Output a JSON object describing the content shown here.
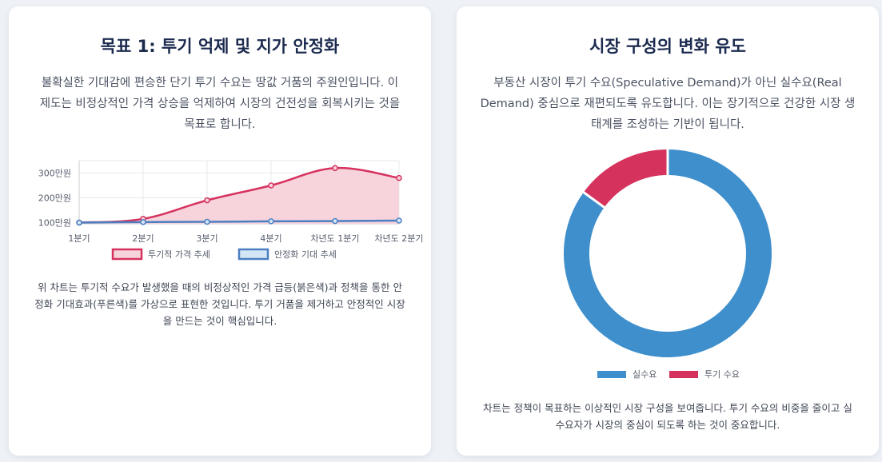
{
  "left_card": {
    "title": "목표 1: 투기 억제 및 지가 안정화",
    "description": "불확실한 기대감에 편승한 단기 투기 수요는 땅값 거품의 주원인입니다. 이 제도는 비정상적인 가격 상승을 억제하여 시장의 건전성을 회복시키는 것을 목표로 합니다.",
    "note": "위 차트는 투기적 수요가 발생했을 때의 비정상적인 가격 급등(붉은색)과 정책을 통한 안정화 기대효과(푸른색)를 가상으로 표현한 것입니다. 투기 거품을 제거하고 안정적인 시장을 만드는 것이 핵심입니다."
  },
  "right_card": {
    "title": "시장 구성의 변화 유도",
    "description": "부동산 시장이 투기 수요(Speculative Demand)가 아닌 실수요(Real Demand) 중심으로 재편되도록 유도합니다. 이는 장기적으로 건강한 시장 생태계를 조성하는 기반이 됩니다.",
    "note": "차트는 정책이 목표하는 이상적인 시장 구성을 보여줍니다. 투기 수요의 비중을 줄이고 실수요자가 시장의 중심이 되도록 하는 것이 중요합니다."
  },
  "chart_data": [
    {
      "type": "line",
      "categories": [
        "1분기",
        "2분기",
        "3분기",
        "4분기",
        "차년도 1분기",
        "차년도 2분기"
      ],
      "y_tick_labels": [
        "100만원",
        "200만원",
        "300만원"
      ],
      "y_ticks": [
        100,
        200,
        300
      ],
      "ylim": [
        95,
        350
      ],
      "grid": true,
      "legend_position": "bottom",
      "series": [
        {
          "name": "투기적 가격 추세",
          "values": [
            100,
            115,
            190,
            250,
            320,
            280
          ],
          "color": "#d6325e",
          "fill": "#f7d3dc",
          "area": true
        },
        {
          "name": "안정화 기대 추세",
          "values": [
            100,
            102,
            103,
            105,
            106,
            108
          ],
          "color": "#4a7fc1",
          "fill": "#d4e6f5",
          "area": false
        }
      ]
    },
    {
      "type": "pie",
      "donut": true,
      "legend_position": "bottom",
      "labels": [
        "실수요",
        "투기 수요"
      ],
      "values": [
        85,
        15
      ],
      "colors": [
        "#3e8fcc",
        "#d6325e"
      ]
    }
  ]
}
